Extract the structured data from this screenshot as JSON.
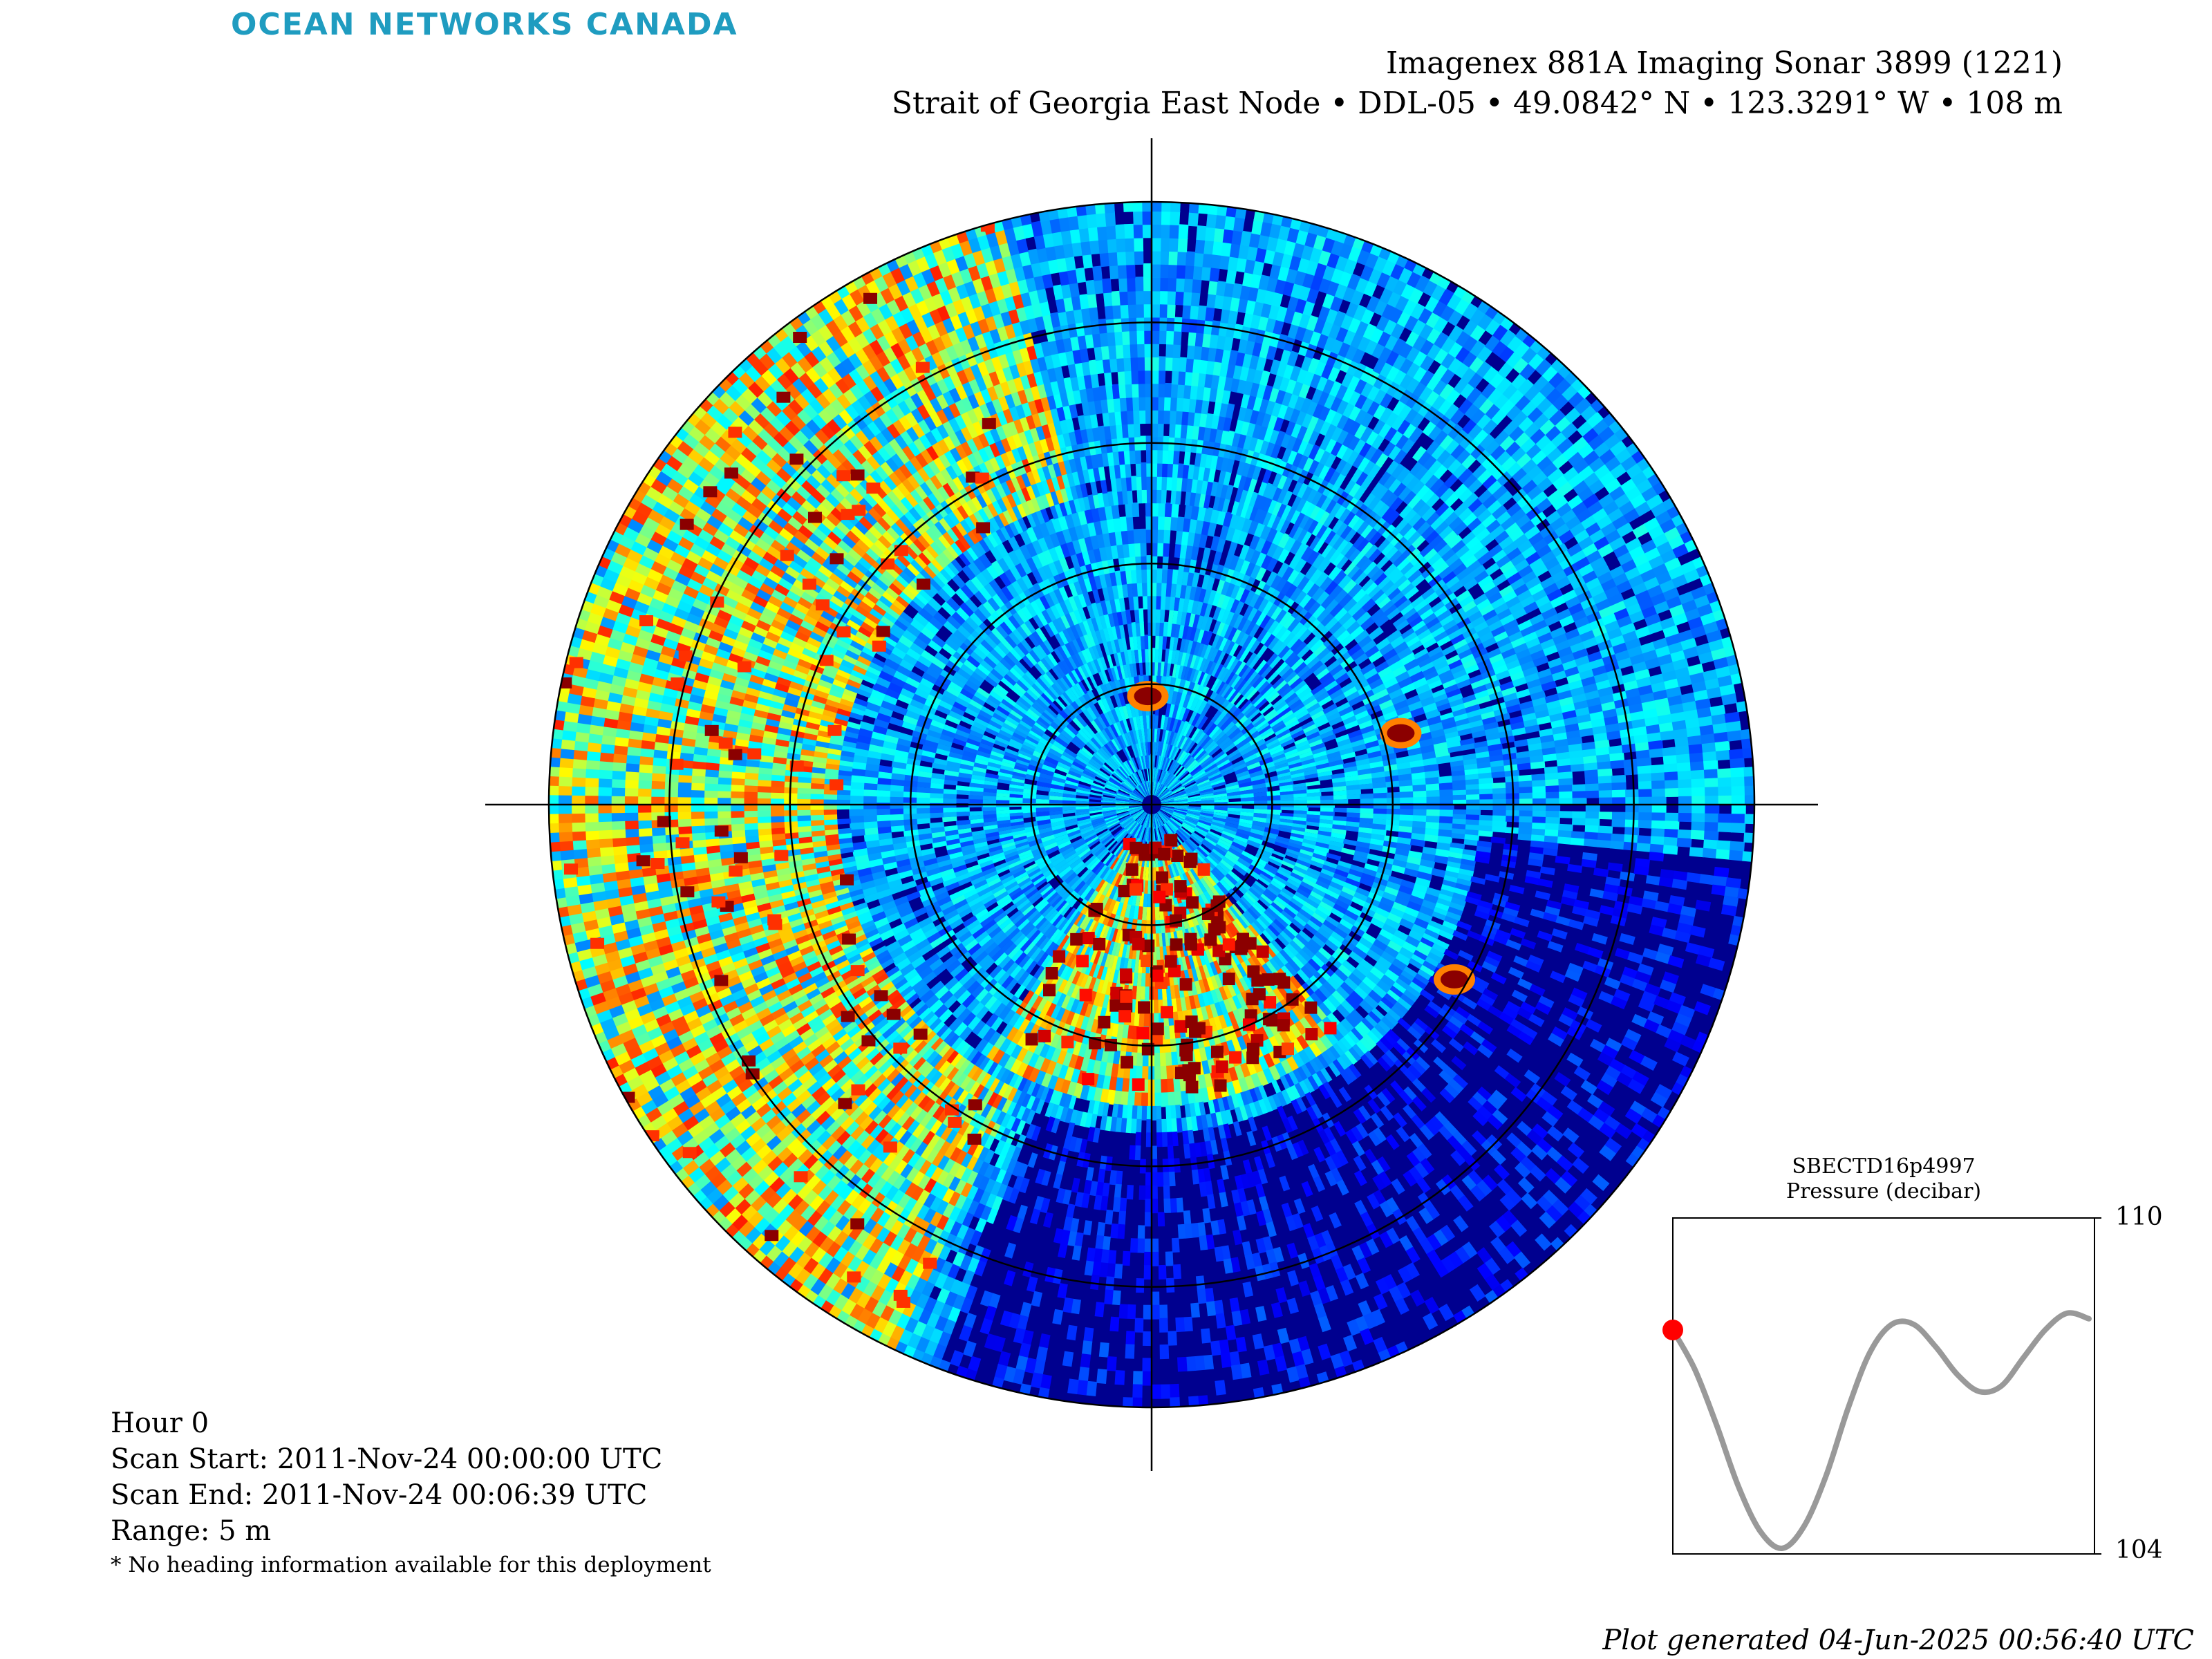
{
  "brand": {
    "logo_text": "OCEAN NETWORKS CANADA",
    "color": "#1f9cc0"
  },
  "header": {
    "title": "Imagenex 881A Imaging Sonar 3899 (1221)",
    "subtitle": "Strait of Georgia East Node • DDL-05 • 49.0842° N • 123.3291° W • 108 m"
  },
  "scan_info": {
    "hour": "Hour 0",
    "scan_start": "Scan Start: 2011-Nov-24 00:00:00 UTC",
    "scan_end": "Scan End: 2011-Nov-24 00:06:39 UTC",
    "range": "Range: 5 m",
    "note": "* No heading information available for this deployment"
  },
  "footer": {
    "generated": "Plot generated 04-Jun-2025 00:56:40 UTC"
  },
  "chart_data": [
    {
      "type": "heatmap",
      "projection": "polar",
      "colormap": "jet",
      "background_color": "#00008f",
      "range_max_m": 5,
      "range_rings_m": [
        1,
        2,
        3,
        4,
        5
      ],
      "crosshair": true,
      "features": [
        {
          "description_kind": "strong_return_patch",
          "bearing_deg": 358,
          "range_m": 0.9
        },
        {
          "description_kind": "strong_return_patch",
          "bearing_deg": 74,
          "range_m": 2.15
        },
        {
          "description_kind": "strong_return_patch",
          "bearing_deg": 120,
          "range_m": 2.9
        },
        {
          "description_kind": "strong_return_fan",
          "bearing_from_deg": 140,
          "bearing_to_deg": 212,
          "range_from_m": 0.3,
          "range_to_m": 2.4
        },
        {
          "description_kind": "speckle_band",
          "bearing_from_deg": 205,
          "bearing_to_deg": 345,
          "range_from_m": 2.6,
          "range_to_m": 5
        }
      ]
    },
    {
      "type": "line",
      "title": "SBECTD16p4997",
      "ylabel": "Pressure (decibar)",
      "ylim": [
        104,
        110
      ],
      "yticks": [
        110,
        104
      ],
      "series": [
        {
          "values": [
            108.0,
            107.3,
            106.3,
            105.2,
            104.4,
            104.1,
            104.5,
            105.4,
            106.6,
            107.6,
            108.1,
            108.1,
            107.7,
            107.2,
            106.9,
            107.0,
            107.5,
            108.0,
            108.3,
            108.2
          ],
          "color": "#999999"
        }
      ],
      "marker": {
        "index": 0,
        "color": "#ff0000"
      },
      "grid": false
    }
  ]
}
